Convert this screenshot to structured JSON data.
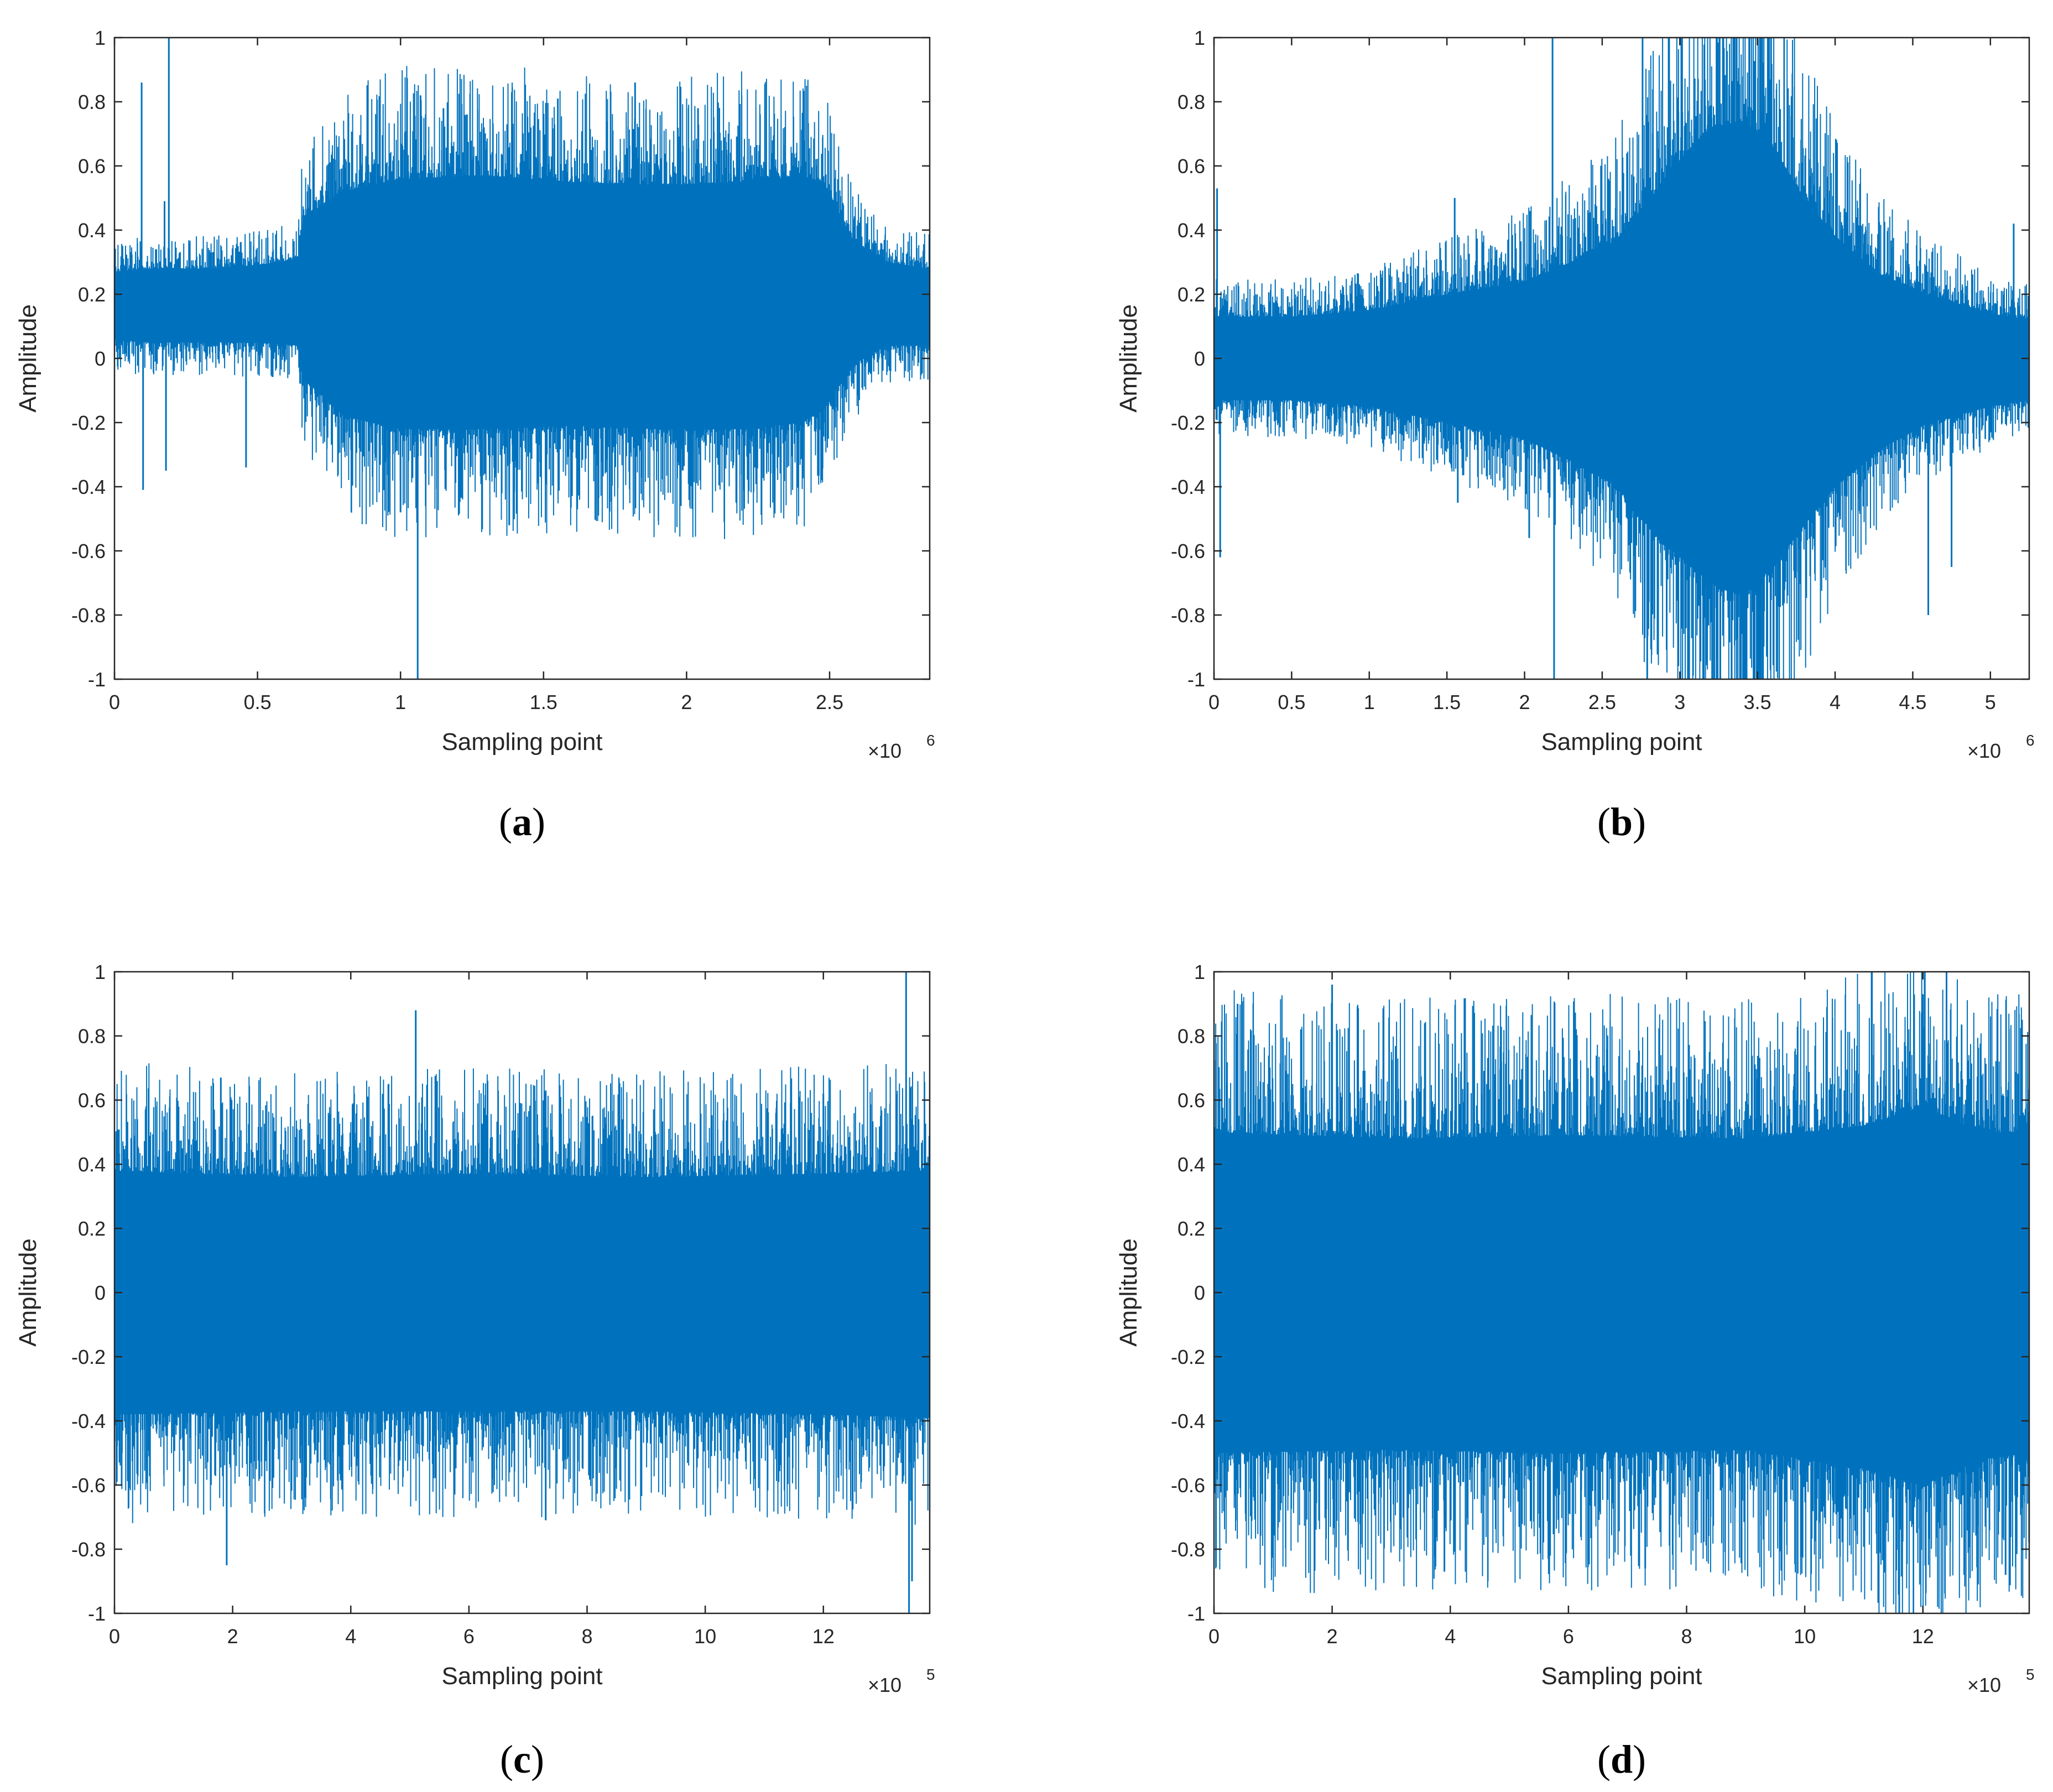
{
  "colors": {
    "signal": "#0072BD",
    "axis": "#262626",
    "background": "#ffffff"
  },
  "chart_data": [
    {
      "type": "line",
      "caption": "a",
      "xlabel": "Sampling point",
      "ylabel": "Amplitude",
      "x_exponent_label": "×10",
      "x_exponent": "6",
      "xlim": [
        0,
        2850000
      ],
      "ylim": [
        -1,
        1
      ],
      "x_ticks": [
        0,
        500000,
        1000000,
        1500000,
        2000000,
        2500000
      ],
      "x_tick_labels": [
        "0",
        "0.5",
        "1",
        "1.5",
        "2",
        "2.5"
      ],
      "y_ticks": [
        1,
        0.8,
        0.6,
        0.4,
        0.2,
        0,
        -0.2,
        -0.4,
        -0.6,
        -0.8,
        -1
      ],
      "y_tick_labels": [
        "1",
        "0.8",
        "0.6",
        "0.4",
        "0.2",
        "0",
        "-0.2",
        "-0.4",
        "-0.6",
        "-0.8",
        "-1"
      ],
      "grid": false,
      "envelope": {
        "x": [
          0,
          100000,
          300000,
          500000,
          640000,
          660000,
          800000,
          1000000,
          1300000,
          1600000,
          1900000,
          2200000,
          2400000,
          2480000,
          2580000,
          2700000,
          2850000
        ],
        "upper": [
          0.27,
          0.28,
          0.28,
          0.29,
          0.31,
          0.44,
          0.52,
          0.56,
          0.57,
          0.55,
          0.54,
          0.55,
          0.57,
          0.55,
          0.37,
          0.3,
          0.28
        ],
        "lower": [
          0.06,
          0.05,
          0.05,
          0.05,
          0.04,
          -0.06,
          -0.18,
          -0.22,
          -0.22,
          -0.21,
          -0.22,
          -0.22,
          -0.2,
          -0.16,
          -0.02,
          0.04,
          0.04
        ]
      },
      "spikes": [
        [
          95000,
          0.86
        ],
        [
          100000,
          -0.41
        ],
        [
          190000,
          1.0
        ],
        [
          175000,
          0.49
        ],
        [
          180000,
          -0.35
        ],
        [
          460000,
          -0.34
        ],
        [
          1000000,
          -0.48
        ],
        [
          1060000,
          -1.0
        ],
        [
          1070000,
          0.82
        ],
        [
          1150000,
          0.78
        ],
        [
          1380000,
          -0.52
        ],
        [
          1550000,
          0.81
        ],
        [
          1690000,
          -0.45
        ],
        [
          1820000,
          0.86
        ],
        [
          1980000,
          -0.46
        ],
        [
          2040000,
          0.78
        ],
        [
          2300000,
          0.64
        ]
      ]
    },
    {
      "type": "line",
      "caption": "b",
      "xlabel": "Sampling point",
      "ylabel": "Amplitude",
      "x_exponent_label": "×10",
      "x_exponent": "6",
      "xlim": [
        0,
        5250000
      ],
      "ylim": [
        -1,
        1
      ],
      "x_ticks": [
        0,
        500000,
        1000000,
        1500000,
        2000000,
        2500000,
        3000000,
        3500000,
        4000000,
        4500000,
        5000000
      ],
      "x_tick_labels": [
        "0",
        "0.5",
        "1",
        "1.5",
        "2",
        "2.5",
        "3",
        "3.5",
        "4",
        "4.5",
        "5"
      ],
      "y_ticks": [
        1,
        0.8,
        0.6,
        0.4,
        0.2,
        0,
        -0.2,
        -0.4,
        -0.6,
        -0.8,
        -1
      ],
      "y_tick_labels": [
        "1",
        "0.8",
        "0.6",
        "0.4",
        "0.2",
        "0",
        "-0.2",
        "-0.4",
        "-0.6",
        "-0.8",
        "-1"
      ],
      "grid": false,
      "envelope": {
        "x": [
          0,
          500000,
          1000000,
          1500000,
          2000000,
          2300000,
          2600000,
          2750000,
          3000000,
          3200000,
          3400000,
          3600000,
          3800000,
          4000000,
          4300000,
          4600000,
          5000000,
          5250000
        ],
        "upper": [
          0.13,
          0.13,
          0.15,
          0.2,
          0.24,
          0.3,
          0.37,
          0.46,
          0.62,
          0.72,
          0.74,
          0.66,
          0.5,
          0.38,
          0.26,
          0.2,
          0.14,
          0.12
        ],
        "lower": [
          -0.13,
          -0.13,
          -0.15,
          -0.2,
          -0.25,
          -0.32,
          -0.4,
          -0.5,
          -0.62,
          -0.7,
          -0.74,
          -0.65,
          -0.52,
          -0.4,
          -0.28,
          -0.2,
          -0.15,
          -0.13
        ]
      },
      "spikes": [
        [
          20000,
          0.53
        ],
        [
          40000,
          -0.62
        ],
        [
          1550000,
          0.5
        ],
        [
          1570000,
          -0.45
        ],
        [
          2030000,
          -0.56
        ],
        [
          2180000,
          1.0
        ],
        [
          2190000,
          -1.0
        ],
        [
          2760000,
          1.0
        ],
        [
          2790000,
          -1.0
        ],
        [
          3010000,
          1.0
        ],
        [
          3060000,
          -1.0
        ],
        [
          3150000,
          -1.0
        ],
        [
          3280000,
          1.0
        ],
        [
          3660000,
          0.6
        ],
        [
          4600000,
          -0.8
        ],
        [
          4750000,
          -0.65
        ],
        [
          5150000,
          0.42
        ]
      ]
    },
    {
      "type": "line",
      "caption": "c",
      "xlabel": "Sampling point",
      "ylabel": "Amplitude",
      "x_exponent_label": "×10",
      "x_exponent": "5",
      "xlim": [
        0,
        1380000
      ],
      "ylim": [
        -1,
        1
      ],
      "x_ticks": [
        0,
        200000,
        400000,
        600000,
        800000,
        1000000,
        1200000
      ],
      "x_tick_labels": [
        "0",
        "2",
        "4",
        "6",
        "8",
        "10",
        "12"
      ],
      "y_ticks": [
        1,
        0.8,
        0.6,
        0.4,
        0.2,
        0,
        -0.2,
        -0.4,
        -0.6,
        -0.8,
        -1
      ],
      "y_tick_labels": [
        "1",
        "0.8",
        "0.6",
        "0.4",
        "0.2",
        "0",
        "-0.2",
        "-0.4",
        "-0.6",
        "-0.8",
        "-1"
      ],
      "grid": false,
      "envelope": {
        "x": [
          0,
          300000,
          600000,
          900000,
          1200000,
          1380000
        ],
        "upper": [
          0.38,
          0.36,
          0.37,
          0.36,
          0.37,
          0.38
        ],
        "lower": [
          -0.38,
          -0.37,
          -0.37,
          -0.37,
          -0.38,
          -0.39
        ]
      },
      "spikes": [
        [
          180000,
          0.67
        ],
        [
          190000,
          -0.85
        ],
        [
          510000,
          0.88
        ],
        [
          730000,
          0.63
        ],
        [
          730000,
          -0.71
        ],
        [
          1200000,
          0.62
        ],
        [
          1340000,
          1.0
        ],
        [
          1345000,
          -1.0
        ],
        [
          1350000,
          -0.9
        ]
      ]
    },
    {
      "type": "line",
      "caption": "d",
      "xlabel": "Sampling point",
      "ylabel": "Amplitude",
      "x_exponent_label": "×10",
      "x_exponent": "5",
      "xlim": [
        0,
        1380000
      ],
      "ylim": [
        -1,
        1
      ],
      "x_ticks": [
        0,
        200000,
        400000,
        600000,
        800000,
        1000000,
        1200000
      ],
      "x_tick_labels": [
        "0",
        "2",
        "4",
        "6",
        "8",
        "10",
        "12"
      ],
      "y_ticks": [
        1,
        0.8,
        0.6,
        0.4,
        0.2,
        0,
        -0.2,
        -0.4,
        -0.6,
        -0.8,
        -1
      ],
      "y_tick_labels": [
        "1",
        "0.8",
        "0.6",
        "0.4",
        "0.2",
        "0",
        "-0.2",
        "-0.4",
        "-0.6",
        "-0.8",
        "-1"
      ],
      "grid": false,
      "envelope": {
        "x": [
          0,
          300000,
          600000,
          900000,
          1100000,
          1200000,
          1300000,
          1380000
        ],
        "upper": [
          0.5,
          0.48,
          0.49,
          0.48,
          0.52,
          0.58,
          0.5,
          0.5
        ],
        "lower": [
          -0.5,
          -0.49,
          -0.5,
          -0.49,
          -0.55,
          -0.6,
          -0.52,
          -0.5
        ]
      },
      "spikes": [
        [
          40000,
          0.9
        ],
        [
          200000,
          0.96
        ],
        [
          390000,
          -0.87
        ],
        [
          730000,
          -0.86
        ],
        [
          1160000,
          -1.0
        ],
        [
          1200000,
          0.93
        ],
        [
          1240000,
          1.0
        ],
        [
          1270000,
          -0.88
        ],
        [
          1340000,
          -0.88
        ]
      ]
    }
  ]
}
